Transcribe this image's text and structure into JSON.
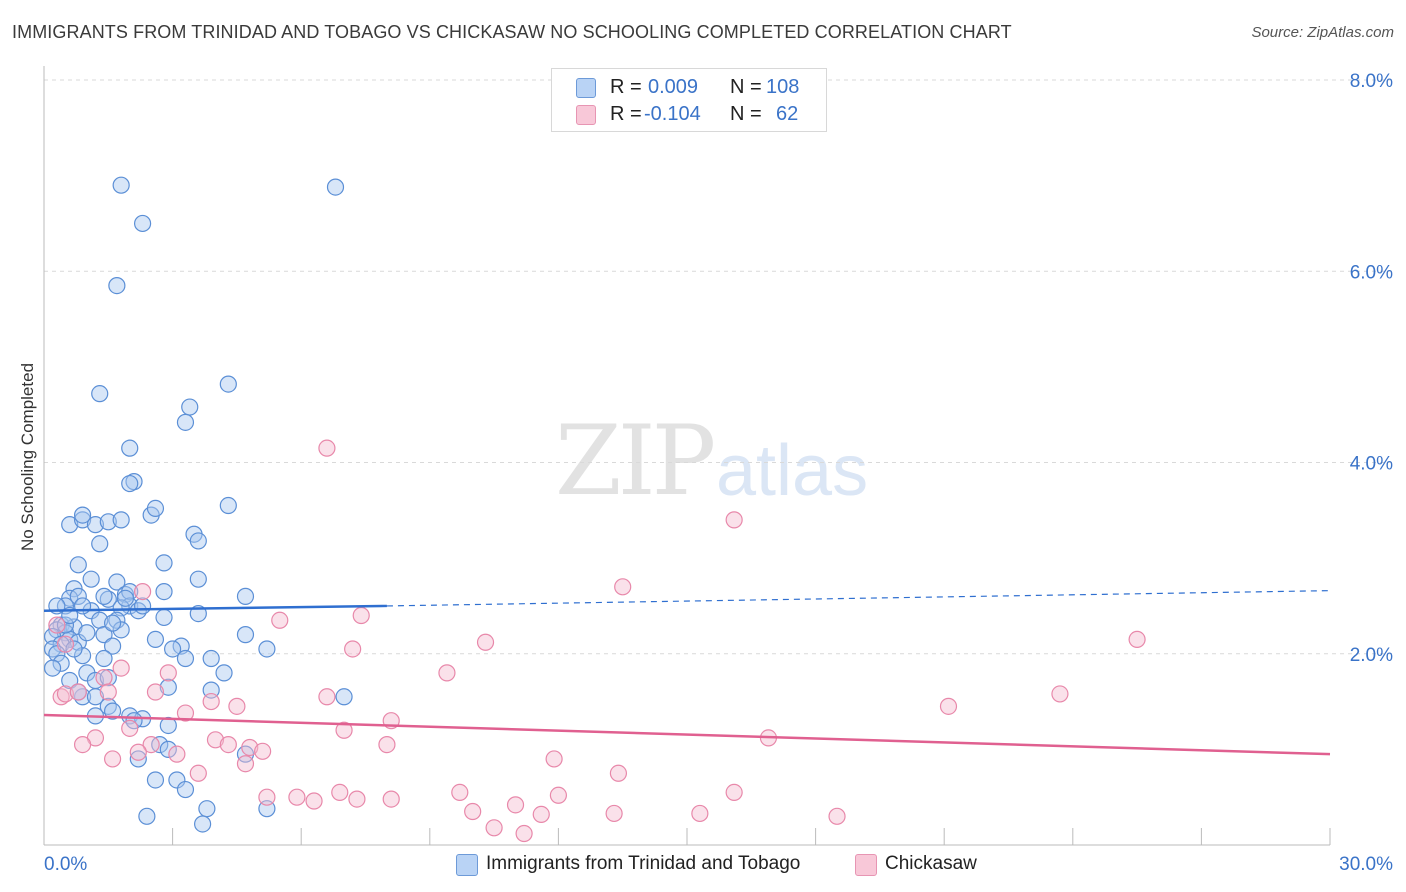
{
  "header": {
    "title": "IMMIGRANTS FROM TRINIDAD AND TOBAGO VS CHICKASAW NO SCHOOLING COMPLETED CORRELATION CHART",
    "source": "Source: ZipAtlas.com"
  },
  "watermark": {
    "zip": "ZIP",
    "atlas": "atlas"
  },
  "legend": {
    "rows": [
      {
        "r_label": "R =",
        "r_value": "0.009",
        "n_label": "N =",
        "n_value": "108"
      },
      {
        "r_label": "R =",
        "r_value": "-0.104",
        "n_label": "N =",
        "n_value": "62"
      }
    ]
  },
  "bottom_legend": {
    "series1": "Immigrants from Trinidad and Tobago",
    "series2": "Chickasaw"
  },
  "colors": {
    "blue_fill": "#a8c8f0",
    "blue_stroke": "#5b8fd6",
    "blue_line": "#2f6fd0",
    "pink_fill": "#f5bcd0",
    "pink_stroke": "#e888aa",
    "pink_line": "#e06090",
    "tick_label": "#3a73c8",
    "grid": "#d9d9d9"
  },
  "chart_data": {
    "type": "scatter",
    "title": "IMMIGRANTS FROM TRINIDAD AND TOBAGO VS CHICKASAW NO SCHOOLING COMPLETED CORRELATION CHART",
    "xlabel": "",
    "ylabel": "No Schooling Completed",
    "xlim": [
      0,
      30
    ],
    "ylim": [
      0,
      8.0
    ],
    "x_tick_labels": [
      "0.0%",
      "30.0%"
    ],
    "y_ticks": [
      2.0,
      4.0,
      6.0,
      8.0
    ],
    "y_tick_labels": [
      "2.0%",
      "4.0%",
      "6.0%",
      "8.0%"
    ],
    "grid": true,
    "legend_position": "top-center",
    "series": [
      {
        "name": "Immigrants from Trinidad and Tobago",
        "color": "#a8c8f0",
        "trend": {
          "x": [
            0.0,
            8.0
          ],
          "y": [
            2.45,
            2.5
          ],
          "dashed_to": [
            30.0,
            2.66
          ]
        },
        "points": [
          [
            1.8,
            6.9
          ],
          [
            6.8,
            6.88
          ],
          [
            2.3,
            6.5
          ],
          [
            1.7,
            5.85
          ],
          [
            4.3,
            4.82
          ],
          [
            1.3,
            4.72
          ],
          [
            3.4,
            4.58
          ],
          [
            3.3,
            4.42
          ],
          [
            2.0,
            4.15
          ],
          [
            2.1,
            3.8
          ],
          [
            2.0,
            3.78
          ],
          [
            4.3,
            3.55
          ],
          [
            2.5,
            3.45
          ],
          [
            2.6,
            3.52
          ],
          [
            0.6,
            3.35
          ],
          [
            0.9,
            3.4
          ],
          [
            1.2,
            3.35
          ],
          [
            1.5,
            3.38
          ],
          [
            1.8,
            3.4
          ],
          [
            0.9,
            3.45
          ],
          [
            3.5,
            3.25
          ],
          [
            3.6,
            3.18
          ],
          [
            1.3,
            3.15
          ],
          [
            0.8,
            2.93
          ],
          [
            2.8,
            2.95
          ],
          [
            1.1,
            2.78
          ],
          [
            1.7,
            2.75
          ],
          [
            3.6,
            2.78
          ],
          [
            0.7,
            2.68
          ],
          [
            1.9,
            2.62
          ],
          [
            2.0,
            2.65
          ],
          [
            4.7,
            2.6
          ],
          [
            2.8,
            2.65
          ],
          [
            0.6,
            2.58
          ],
          [
            0.8,
            2.6
          ],
          [
            1.5,
            2.57
          ],
          [
            0.5,
            2.5
          ],
          [
            1.1,
            2.45
          ],
          [
            2.0,
            2.5
          ],
          [
            0.3,
            2.5
          ],
          [
            1.8,
            2.48
          ],
          [
            2.2,
            2.45
          ],
          [
            0.9,
            2.5
          ],
          [
            3.6,
            2.42
          ],
          [
            2.8,
            2.38
          ],
          [
            1.3,
            2.35
          ],
          [
            0.4,
            2.3
          ],
          [
            0.7,
            2.28
          ],
          [
            1.7,
            2.35
          ],
          [
            0.3,
            2.25
          ],
          [
            0.5,
            2.22
          ],
          [
            1.4,
            2.2
          ],
          [
            1.8,
            2.25
          ],
          [
            0.2,
            2.18
          ],
          [
            0.6,
            2.15
          ],
          [
            2.6,
            2.15
          ],
          [
            4.7,
            2.2
          ],
          [
            0.4,
            2.1
          ],
          [
            0.8,
            2.12
          ],
          [
            1.6,
            2.08
          ],
          [
            3.2,
            2.08
          ],
          [
            5.2,
            2.05
          ],
          [
            0.2,
            2.05
          ],
          [
            0.3,
            2.0
          ],
          [
            0.9,
            1.98
          ],
          [
            1.4,
            1.95
          ],
          [
            3.3,
            1.95
          ],
          [
            3.9,
            1.95
          ],
          [
            0.4,
            1.9
          ],
          [
            0.2,
            1.85
          ],
          [
            1.0,
            1.8
          ],
          [
            4.2,
            1.8
          ],
          [
            0.6,
            1.72
          ],
          [
            1.2,
            1.72
          ],
          [
            1.5,
            1.75
          ],
          [
            2.9,
            1.65
          ],
          [
            3.9,
            1.62
          ],
          [
            0.9,
            1.55
          ],
          [
            1.2,
            1.55
          ],
          [
            7.0,
            1.55
          ],
          [
            1.5,
            1.45
          ],
          [
            1.2,
            1.35
          ],
          [
            1.6,
            1.4
          ],
          [
            2.0,
            1.35
          ],
          [
            2.3,
            1.32
          ],
          [
            2.9,
            1.25
          ],
          [
            2.7,
            1.05
          ],
          [
            2.9,
            1.0
          ],
          [
            4.7,
            0.95
          ],
          [
            2.2,
            0.9
          ],
          [
            2.6,
            0.68
          ],
          [
            3.1,
            0.68
          ],
          [
            3.3,
            0.58
          ],
          [
            3.8,
            0.38
          ],
          [
            5.2,
            0.38
          ],
          [
            2.4,
            0.3
          ],
          [
            3.7,
            0.22
          ],
          [
            0.5,
            2.3
          ],
          [
            1.0,
            2.22
          ],
          [
            0.7,
            2.05
          ],
          [
            2.3,
            2.5
          ],
          [
            1.9,
            2.58
          ],
          [
            0.6,
            2.4
          ],
          [
            1.4,
            2.6
          ],
          [
            3.0,
            2.05
          ],
          [
            0.8,
            1.6
          ],
          [
            2.1,
            1.3
          ],
          [
            1.6,
            2.32
          ]
        ]
      },
      {
        "name": "Chickasaw",
        "color": "#f5bcd0",
        "trend": {
          "x": [
            0.0,
            30.0
          ],
          "y": [
            1.36,
            0.95
          ]
        },
        "points": [
          [
            0.3,
            2.3
          ],
          [
            0.5,
            2.1
          ],
          [
            2.3,
            2.65
          ],
          [
            6.6,
            4.15
          ],
          [
            16.1,
            3.4
          ],
          [
            13.5,
            2.7
          ],
          [
            5.5,
            2.35
          ],
          [
            7.4,
            2.4
          ],
          [
            10.3,
            2.12
          ],
          [
            25.5,
            2.15
          ],
          [
            7.2,
            2.05
          ],
          [
            1.8,
            1.85
          ],
          [
            2.9,
            1.8
          ],
          [
            9.4,
            1.8
          ],
          [
            1.4,
            1.75
          ],
          [
            2.6,
            1.6
          ],
          [
            0.4,
            1.55
          ],
          [
            0.5,
            1.58
          ],
          [
            0.8,
            1.6
          ],
          [
            1.5,
            1.6
          ],
          [
            6.6,
            1.55
          ],
          [
            23.7,
            1.58
          ],
          [
            3.9,
            1.5
          ],
          [
            4.5,
            1.45
          ],
          [
            21.1,
            1.45
          ],
          [
            3.3,
            1.38
          ],
          [
            8.1,
            1.3
          ],
          [
            7.0,
            1.2
          ],
          [
            2.0,
            1.22
          ],
          [
            1.2,
            1.12
          ],
          [
            0.9,
            1.05
          ],
          [
            2.5,
            1.05
          ],
          [
            4.0,
            1.1
          ],
          [
            4.3,
            1.05
          ],
          [
            4.8,
            1.02
          ],
          [
            5.1,
            0.98
          ],
          [
            8.0,
            1.05
          ],
          [
            2.2,
            0.97
          ],
          [
            16.9,
            1.12
          ],
          [
            3.1,
            0.95
          ],
          [
            1.6,
            0.9
          ],
          [
            4.7,
            0.85
          ],
          [
            11.9,
            0.9
          ],
          [
            3.6,
            0.75
          ],
          [
            13.4,
            0.75
          ],
          [
            6.9,
            0.55
          ],
          [
            9.7,
            0.55
          ],
          [
            12.0,
            0.52
          ],
          [
            16.1,
            0.55
          ],
          [
            5.2,
            0.5
          ],
          [
            5.9,
            0.5
          ],
          [
            6.3,
            0.46
          ],
          [
            7.3,
            0.48
          ],
          [
            8.1,
            0.48
          ],
          [
            10.0,
            0.35
          ],
          [
            11.6,
            0.32
          ],
          [
            13.3,
            0.33
          ],
          [
            11.0,
            0.42
          ],
          [
            15.3,
            0.33
          ],
          [
            18.5,
            0.3
          ],
          [
            10.5,
            0.18
          ],
          [
            11.2,
            0.12
          ]
        ]
      }
    ]
  }
}
